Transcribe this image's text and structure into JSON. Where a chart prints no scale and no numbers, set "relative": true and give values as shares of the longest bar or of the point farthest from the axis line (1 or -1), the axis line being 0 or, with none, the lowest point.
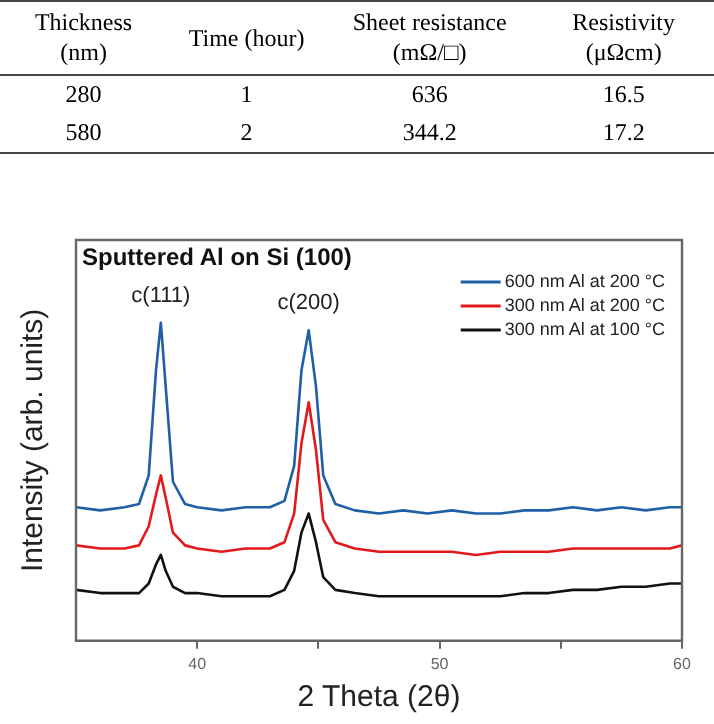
{
  "chart_data": [
    {
      "type": "other",
      "annotations": [
        "Thickness (nm)",
        "Time (hour)",
        "Sheet resistance (mΩ/□)",
        "Resistivity (μΩcm)",
        "280",
        "1",
        "636",
        "16.5",
        "580",
        "2",
        "344.2",
        "17.2"
      ]
    },
    {
      "type": "line",
      "title": "Sputtered Al on Si (100)",
      "xlabel": "2 Theta (2θ)",
      "ylabel": "Intensity (arb. units)",
      "relative": true,
      "legend": "top right",
      "grid": false,
      "x": [
        35,
        36,
        37,
        37.6,
        38.0,
        38.3,
        38.5,
        38.7,
        39.0,
        39.5,
        40,
        41,
        42,
        43,
        43.6,
        44.0,
        44.3,
        44.6,
        44.9,
        45.2,
        45.7,
        46.5,
        47.5,
        48.5,
        49.5,
        50.5,
        51.5,
        52.5,
        53.5,
        54.5,
        55.5,
        56.5,
        57.5,
        58.5,
        59.5,
        60
      ],
      "xlim": [
        35,
        60
      ],
      "xticks": [
        40,
        {
          "value": 45,
          "label": null
        },
        50,
        {
          "value": 55,
          "label": null
        },
        60
      ],
      "annotations": [
        {
          "text": "c(111)",
          "x": 38.5,
          "y": 1.0
        },
        {
          "text": "c(200)",
          "x": 44.6,
          "y": 0.976
        }
      ],
      "series": [
        {
          "name": "600 nm Al at 200 °C",
          "color": "#1f5fa8",
          "values": [
            0.42,
            0.41,
            0.42,
            0.43,
            0.52,
            0.85,
            1.0,
            0.8,
            0.5,
            0.43,
            0.42,
            0.41,
            0.42,
            0.42,
            0.44,
            0.55,
            0.85,
            0.976,
            0.8,
            0.52,
            0.43,
            0.41,
            0.4,
            0.41,
            0.4,
            0.41,
            0.4,
            0.4,
            0.41,
            0.41,
            0.42,
            0.41,
            0.42,
            0.41,
            0.42,
            0.42
          ]
        },
        {
          "name": "300 nm Al at 200 °C",
          "color": "#e31a1c",
          "values": [
            0.3,
            0.29,
            0.29,
            0.3,
            0.36,
            0.46,
            0.52,
            0.45,
            0.34,
            0.3,
            0.29,
            0.28,
            0.29,
            0.29,
            0.31,
            0.4,
            0.62,
            0.75,
            0.6,
            0.38,
            0.31,
            0.29,
            0.28,
            0.28,
            0.28,
            0.28,
            0.27,
            0.28,
            0.28,
            0.28,
            0.29,
            0.29,
            0.29,
            0.29,
            0.29,
            0.3
          ]
        },
        {
          "name": "300 nm Al at 100 °C",
          "color": "#111111",
          "values": [
            0.16,
            0.15,
            0.15,
            0.15,
            0.18,
            0.24,
            0.27,
            0.22,
            0.17,
            0.15,
            0.15,
            0.14,
            0.14,
            0.14,
            0.16,
            0.22,
            0.34,
            0.4,
            0.31,
            0.2,
            0.16,
            0.15,
            0.14,
            0.14,
            0.14,
            0.14,
            0.14,
            0.14,
            0.15,
            0.15,
            0.16,
            0.16,
            0.17,
            0.17,
            0.18,
            0.18
          ]
        }
      ]
    }
  ]
}
